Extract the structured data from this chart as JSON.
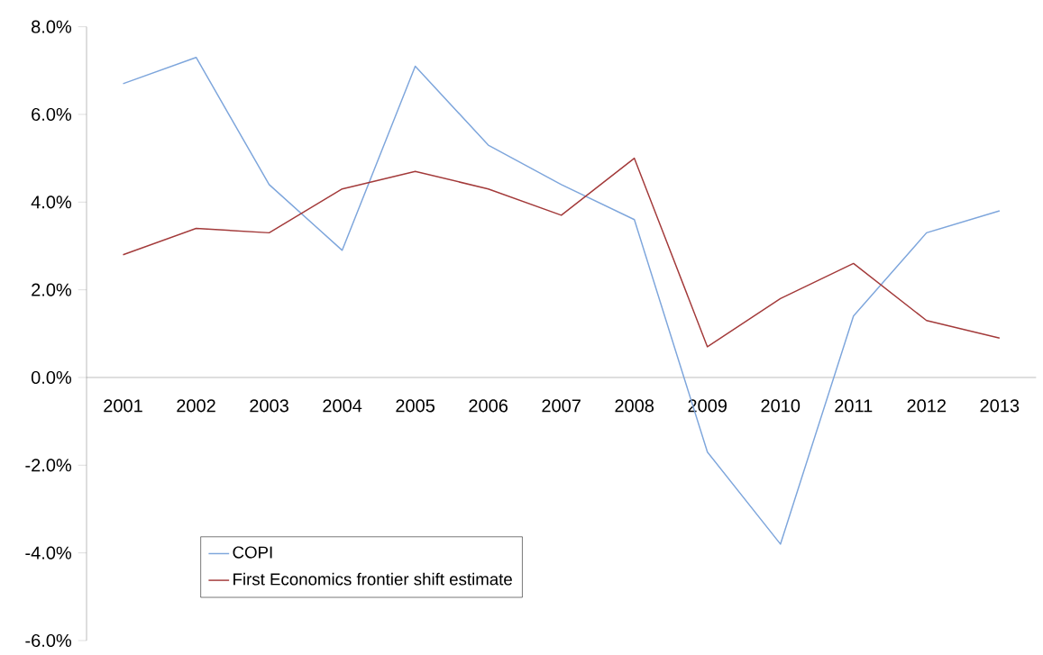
{
  "chart_data": {
    "type": "line",
    "categories": [
      "2001",
      "2002",
      "2003",
      "2004",
      "2005",
      "2006",
      "2007",
      "2008",
      "2009",
      "2010",
      "2011",
      "2012",
      "2013"
    ],
    "series": [
      {
        "name": "COPI",
        "color": "#7ea6dc",
        "values": [
          6.7,
          7.3,
          4.4,
          2.9,
          7.1,
          5.3,
          4.4,
          3.6,
          -1.7,
          -3.8,
          1.4,
          3.3,
          3.8
        ]
      },
      {
        "name": "First Economics frontier shift estimate",
        "color": "#a33a3a",
        "values": [
          2.8,
          3.4,
          3.3,
          4.3,
          4.7,
          4.3,
          3.7,
          5.0,
          0.7,
          1.8,
          2.6,
          1.3,
          0.9
        ]
      }
    ],
    "ylim": [
      -6,
      8
    ],
    "yticks": [
      {
        "value": -6,
        "label": "-6.0%"
      },
      {
        "value": -4,
        "label": "-4.0%"
      },
      {
        "value": -2,
        "label": "-2.0%"
      },
      {
        "value": 0,
        "label": "0.0%"
      },
      {
        "value": 2,
        "label": "2.0%"
      },
      {
        "value": 4,
        "label": "4.0%"
      },
      {
        "value": 6,
        "label": "6.0%"
      },
      {
        "value": 8,
        "label": "8.0%"
      }
    ],
    "grid": false,
    "legend": "bottom left",
    "marker": "none",
    "line_style": "solid"
  }
}
